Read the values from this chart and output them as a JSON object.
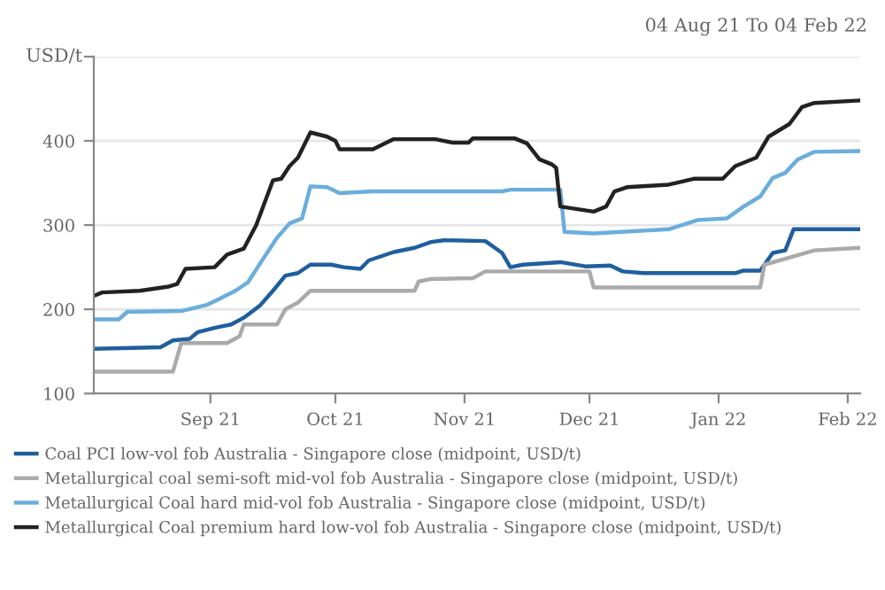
{
  "chart_data": {
    "type": "line",
    "subtitle": "04 Aug 21 To 04 Feb 22",
    "ylabel": "USD/t",
    "xlim": [
      "2021-08-04",
      "2022-02-04"
    ],
    "xticks": [
      {
        "value": "2021-09-01",
        "label": "Sep 21"
      },
      {
        "value": "2021-10-01",
        "label": "Oct 21"
      },
      {
        "value": "2021-11-01",
        "label": "Nov 21"
      },
      {
        "value": "2021-12-01",
        "label": "Dec 21"
      },
      {
        "value": "2022-01-01",
        "label": "Jan 22"
      },
      {
        "value": "2022-02-01",
        "label": "Feb 22"
      }
    ],
    "ylim": [
      100,
      500
    ],
    "yticks": [
      100,
      200,
      300,
      400,
      {
        "value": 500,
        "label": null
      }
    ],
    "grid": "y",
    "legend": "bottom",
    "line_style": "solid",
    "marker": "none",
    "series": [
      {
        "name": "Coal PCI low-vol fob Australia - Singapore close (midpoint, USD/t)",
        "color": "#1f5f9e",
        "x": [
          "2021-08-04",
          "2021-08-20",
          "2021-08-23",
          "2021-08-27",
          "2021-08-29",
          "2021-09-02",
          "2021-09-06",
          "2021-09-09",
          "2021-09-13",
          "2021-09-16",
          "2021-09-19",
          "2021-09-22",
          "2021-09-25",
          "2021-09-30",
          "2021-10-03",
          "2021-10-07",
          "2021-10-09",
          "2021-10-15",
          "2021-10-20",
          "2021-10-24",
          "2021-10-27",
          "2021-11-06",
          "2021-11-08",
          "2021-11-10",
          "2021-11-12",
          "2021-11-15",
          "2021-11-24",
          "2021-11-30",
          "2021-12-06",
          "2021-12-09",
          "2021-12-14",
          "2022-01-05",
          "2022-01-07",
          "2022-01-11",
          "2022-01-14",
          "2022-01-17",
          "2022-01-19",
          "2022-02-04"
        ],
        "values": [
          153,
          155,
          163,
          165,
          173,
          178,
          182,
          190,
          205,
          222,
          240,
          243,
          253,
          253,
          250,
          248,
          258,
          268,
          273,
          280,
          282,
          281,
          274,
          267,
          250,
          253,
          256,
          251,
          252,
          245,
          243,
          243,
          246,
          246,
          267,
          270,
          295,
          295
        ]
      },
      {
        "name": "Metallurgical coal semi-soft mid-vol fob Australia - Singapore close (midpoint, USD/t)",
        "color": "#aaaaaa",
        "x": [
          "2021-08-04",
          "2021-08-23",
          "2021-08-25",
          "2021-09-05",
          "2021-09-08",
          "2021-09-09",
          "2021-09-17",
          "2021-09-19",
          "2021-09-22",
          "2021-09-25",
          "2021-10-20",
          "2021-10-21",
          "2021-10-24",
          "2021-11-03",
          "2021-11-06",
          "2021-12-01",
          "2021-12-02",
          "2022-01-11",
          "2022-01-12",
          "2022-01-17",
          "2022-01-24",
          "2022-02-04"
        ],
        "values": [
          126,
          126,
          160,
          160,
          168,
          182,
          182,
          200,
          208,
          222,
          222,
          233,
          236,
          237,
          245,
          245,
          226,
          226,
          253,
          260,
          270,
          273
        ]
      },
      {
        "name": "Metallurgical Coal hard mid-vol fob Australia - Singapore close (midpoint, USD/t)",
        "color": "#6aaedc",
        "x": [
          "2021-08-04",
          "2021-08-10",
          "2021-08-12",
          "2021-08-25",
          "2021-08-31",
          "2021-09-03",
          "2021-09-07",
          "2021-09-10",
          "2021-09-13",
          "2021-09-17",
          "2021-09-20",
          "2021-09-23",
          "2021-09-25",
          "2021-09-29",
          "2021-10-02",
          "2021-10-10",
          "2021-11-10",
          "2021-11-12",
          "2021-11-24",
          "2021-11-25",
          "2021-12-02",
          "2021-12-20",
          "2021-12-27",
          "2022-01-03",
          "2022-01-07",
          "2022-01-11",
          "2022-01-14",
          "2022-01-17",
          "2022-01-20",
          "2022-01-24",
          "2022-02-04"
        ],
        "values": [
          188,
          188,
          197,
          198,
          205,
          212,
          222,
          232,
          255,
          285,
          302,
          308,
          346,
          345,
          338,
          340,
          340,
          342,
          342,
          292,
          290,
          295,
          306,
          308,
          322,
          334,
          356,
          362,
          378,
          387,
          388
        ]
      },
      {
        "name": "Metallurgical Coal premium hard low-vol fob Australia - Singapore close (midpoint, USD/t)",
        "color": "#222222",
        "x": [
          "2021-08-04",
          "2021-08-06",
          "2021-08-15",
          "2021-08-22",
          "2021-08-24",
          "2021-08-26",
          "2021-09-02",
          "2021-09-05",
          "2021-09-09",
          "2021-09-12",
          "2021-09-16",
          "2021-09-18",
          "2021-09-20",
          "2021-09-22",
          "2021-09-25",
          "2021-09-29",
          "2021-10-01",
          "2021-10-02",
          "2021-10-10",
          "2021-10-15",
          "2021-10-25",
          "2021-10-29",
          "2021-11-02",
          "2021-11-03",
          "2021-11-13",
          "2021-11-16",
          "2021-11-19",
          "2021-11-22",
          "2021-11-23",
          "2021-11-24",
          "2021-12-02",
          "2021-12-05",
          "2021-12-07",
          "2021-12-10",
          "2021-12-20",
          "2021-12-26",
          "2022-01-02",
          "2022-01-05",
          "2022-01-10",
          "2022-01-13",
          "2022-01-18",
          "2022-01-21",
          "2022-01-24",
          "2022-02-04"
        ],
        "values": [
          216,
          220,
          222,
          227,
          230,
          248,
          250,
          265,
          272,
          300,
          353,
          355,
          370,
          380,
          410,
          405,
          400,
          390,
          390,
          402,
          402,
          398,
          398,
          403,
          403,
          397,
          378,
          372,
          368,
          322,
          316,
          322,
          340,
          345,
          348,
          355,
          355,
          370,
          380,
          405,
          420,
          440,
          445,
          448
        ]
      }
    ]
  }
}
